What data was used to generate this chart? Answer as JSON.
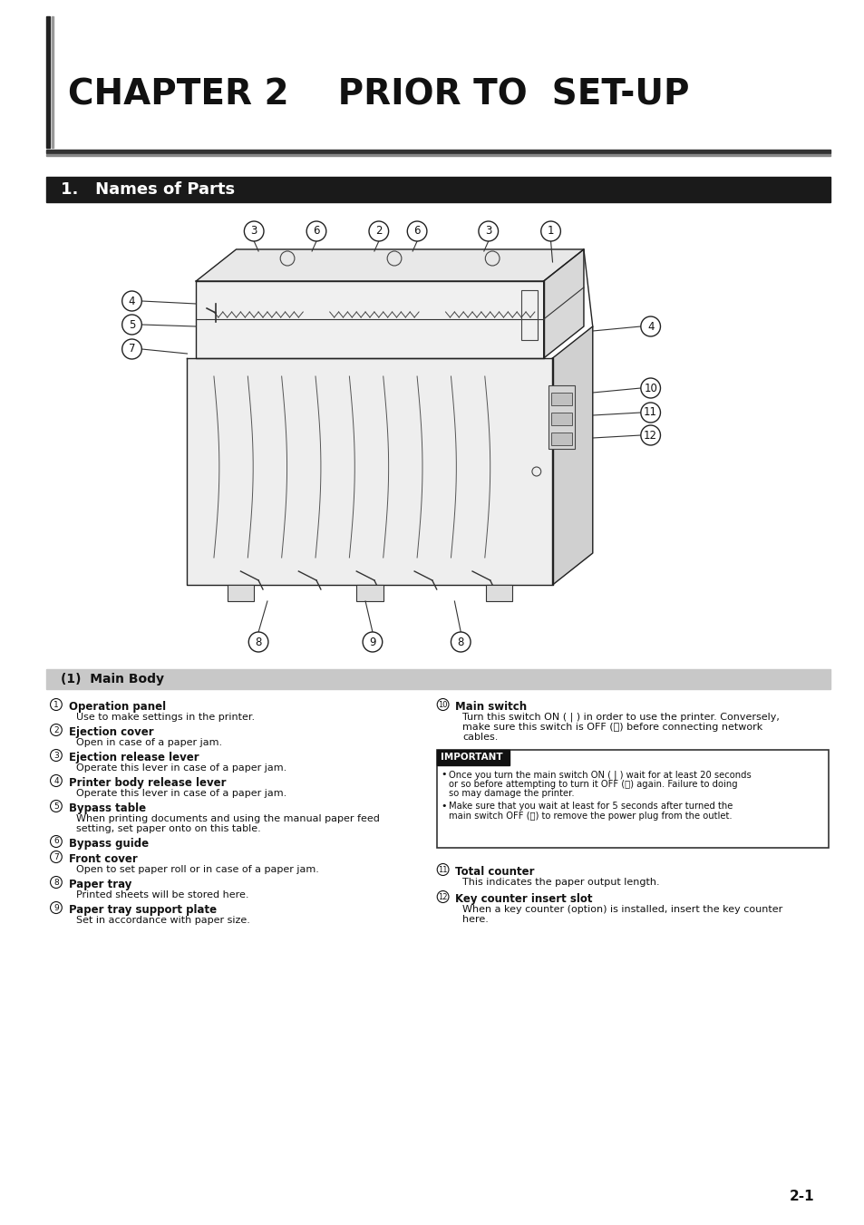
{
  "page_bg": "#ffffff",
  "chapter_title": "CHAPTER 2    PRIOR TO  SET-UP",
  "chapter_title_fontsize": 28,
  "section_title": "1.   Names of Parts",
  "section_title_fontsize": 13,
  "section_bg": "#1a1a1a",
  "section_text_color": "#ffffff",
  "subsection_title": "(1)  Main Body",
  "subsection_bg": "#c8c8c8",
  "subsection_fontsize": 10,
  "left_col_items": [
    {
      "num": "1",
      "bold": "Operation panel",
      "detail": "Use to make settings in the printer."
    },
    {
      "num": "2",
      "bold": "Ejection cover",
      "detail": "Open in case of a paper jam."
    },
    {
      "num": "3",
      "bold": "Ejection release lever",
      "detail": "Operate this lever in case of a paper jam."
    },
    {
      "num": "4",
      "bold": "Printer body release lever",
      "detail": "Operate this lever in case of a paper jam."
    },
    {
      "num": "5",
      "bold": "Bypass table",
      "detail": "When printing documents and using the manual paper feed\nsetting, set paper onto on this table."
    },
    {
      "num": "6",
      "bold": "Bypass guide",
      "detail": ""
    },
    {
      "num": "7",
      "bold": "Front cover",
      "detail": "Open to set paper roll or in case of a paper jam."
    },
    {
      "num": "8",
      "bold": "Paper tray",
      "detail": "Printed sheets will be stored here."
    },
    {
      "num": "9",
      "bold": "Paper tray support plate",
      "detail": "Set in accordance with paper size."
    }
  ],
  "right_col_items": [
    {
      "num": "10",
      "bold": "Main switch",
      "detail": "Turn this switch ON ( | ) in order to use the printer. Conversely,\nmake sure this switch is OFF (ⓘ) before connecting network\ncables."
    },
    {
      "num": "11",
      "bold": "Total counter",
      "detail": "This indicates the paper output length."
    },
    {
      "num": "12",
      "bold": "Key counter insert slot",
      "detail": "When a key counter (option) is installed, insert the key counter\nhere."
    }
  ],
  "important_title": "IMPORTANT",
  "important_bullets": [
    "Once you turn the main switch ON ( | ) wait for at least 20 seconds\nor so before attempting to turn it OFF (ⓘ) again. Failure to doing\nso may damage the printer.",
    "Make sure that you wait at least for 5 seconds after turned the\nmain switch OFF (ⓘ) to remove the power plug from the outlet."
  ],
  "page_number": "2-1",
  "item_fontsize": 8.5,
  "detail_fontsize": 8.0
}
